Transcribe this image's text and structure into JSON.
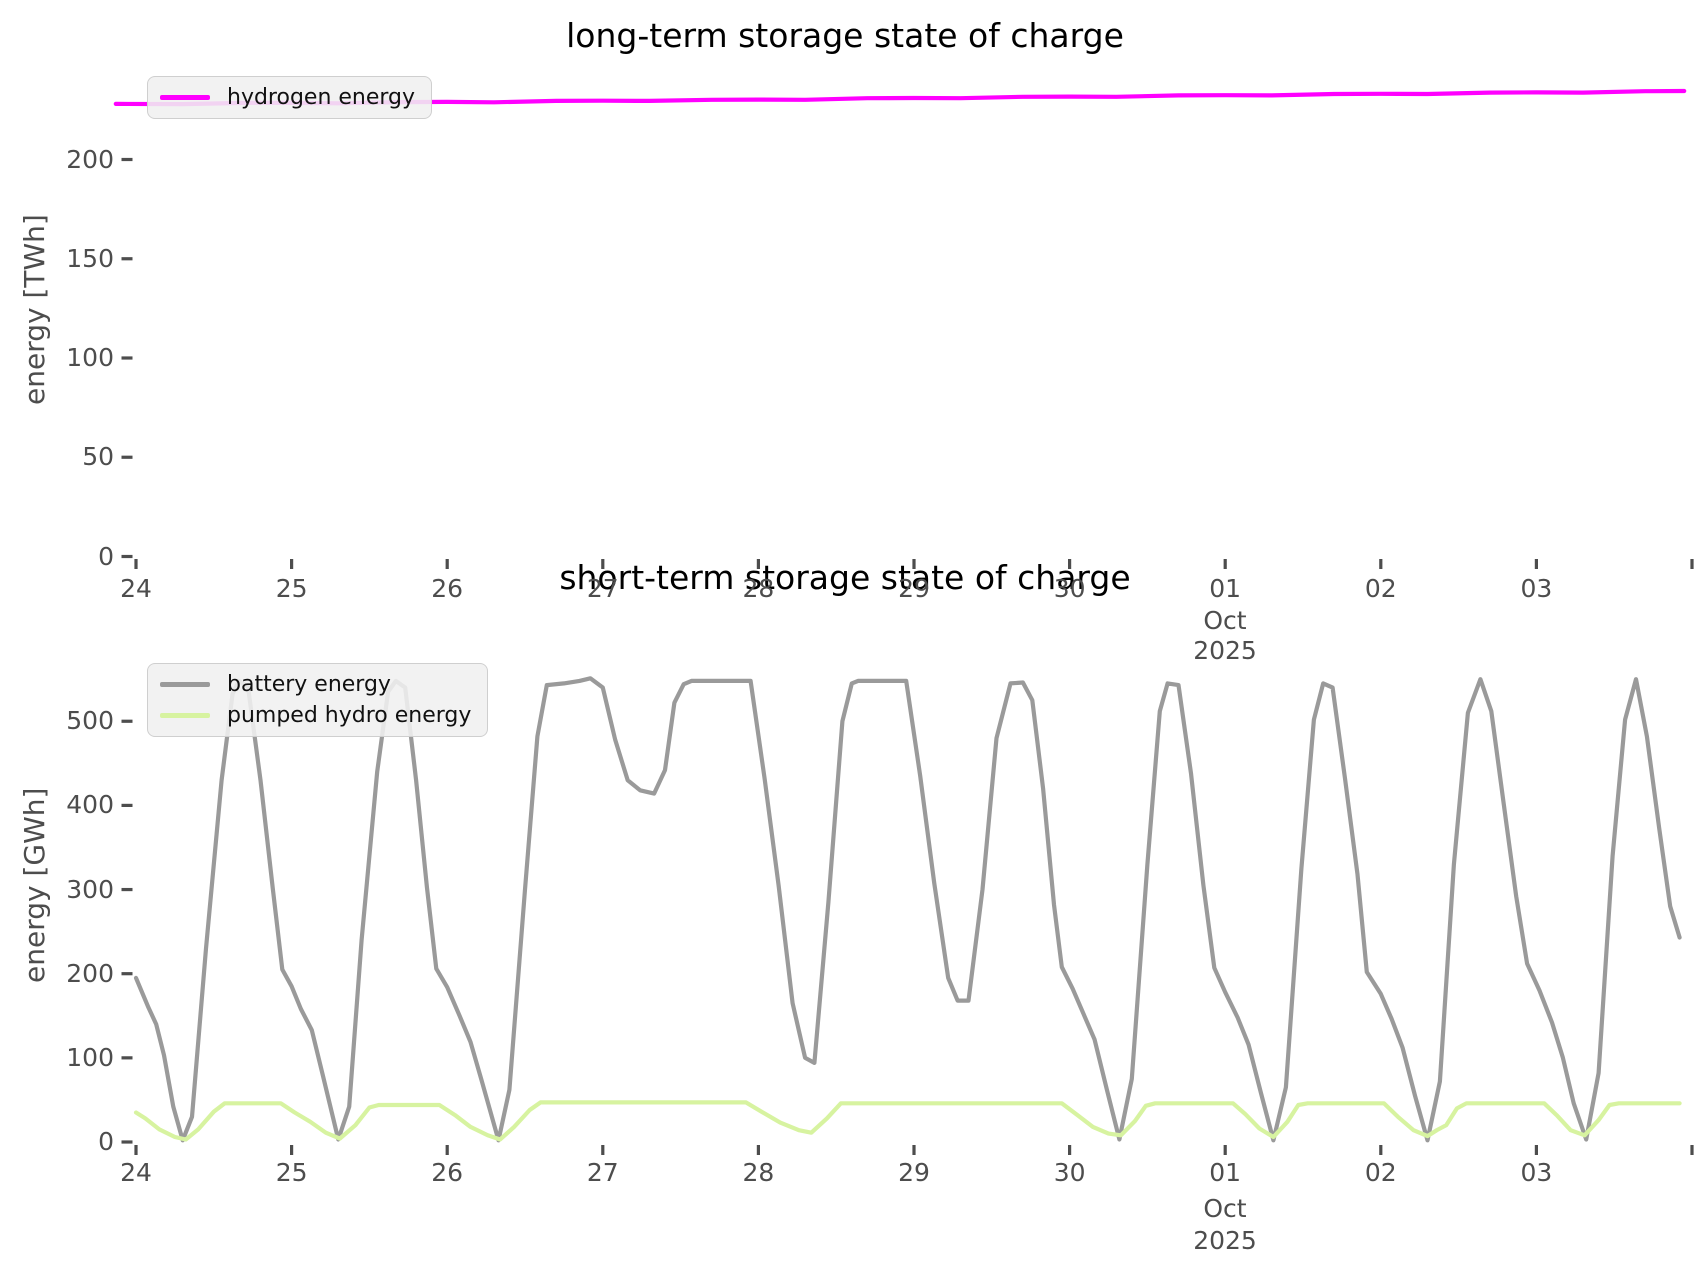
{
  "figure": {
    "background": "#ffffff",
    "tick_color": "#4d4d4d",
    "title_color": "#000000"
  },
  "chart_data": [
    {
      "type": "line",
      "title": "long-term storage state of charge",
      "xlabel": "",
      "ylabel": "energy [TWh]",
      "ytick_values": [
        0,
        50,
        100,
        150,
        200
      ],
      "ylim": [
        0,
        246
      ],
      "grid": false,
      "legend_position": "upper left",
      "x_axis": {
        "tick_labels": [
          "24",
          "25",
          "26",
          "27",
          "28",
          "29",
          "30",
          "01",
          "02",
          "03"
        ],
        "month_label": "Oct",
        "year_label": "2025",
        "unit": "days since 2025-09-24 00:00",
        "xlim": [
          -0.2,
          10.05
        ]
      },
      "series": [
        {
          "name": "hydrogen energy",
          "color": "#ff00ff",
          "unit": "TWh",
          "points": [
            [
              -0.13,
              228.0
            ],
            [
              0.3,
              227.9
            ],
            [
              0.7,
              228.5
            ],
            [
              1.0,
              228.5
            ],
            [
              1.3,
              228.3
            ],
            [
              1.7,
              228.9
            ],
            [
              2.0,
              229.0
            ],
            [
              2.3,
              228.8
            ],
            [
              2.7,
              229.5
            ],
            [
              3.0,
              229.6
            ],
            [
              3.3,
              229.5
            ],
            [
              3.7,
              230.1
            ],
            [
              4.0,
              230.2
            ],
            [
              4.3,
              230.1
            ],
            [
              4.7,
              230.9
            ],
            [
              5.0,
              231.0
            ],
            [
              5.3,
              230.9
            ],
            [
              5.7,
              231.6
            ],
            [
              6.0,
              231.7
            ],
            [
              6.3,
              231.6
            ],
            [
              6.7,
              232.3
            ],
            [
              7.0,
              232.4
            ],
            [
              7.3,
              232.3
            ],
            [
              7.7,
              233.0
            ],
            [
              8.0,
              233.1
            ],
            [
              8.3,
              233.0
            ],
            [
              8.7,
              233.7
            ],
            [
              9.0,
              233.8
            ],
            [
              9.3,
              233.7
            ],
            [
              9.7,
              234.4
            ],
            [
              9.95,
              234.5
            ]
          ]
        }
      ]
    },
    {
      "type": "line",
      "title": "short-term storage state of charge",
      "xlabel": "",
      "ylabel": "energy [GWh]",
      "ytick_values": [
        0,
        100,
        200,
        300,
        400,
        500
      ],
      "ylim": [
        0,
        577
      ],
      "grid": false,
      "legend_position": "upper left",
      "x_axis": {
        "tick_labels": [
          "24",
          "25",
          "26",
          "27",
          "28",
          "29",
          "30",
          "01",
          "02",
          "03"
        ],
        "month_label": "Oct",
        "year_label": "2025",
        "unit": "days since 2025-09-24 00:00",
        "xlim": [
          -0.2,
          10.05
        ]
      },
      "series": [
        {
          "name": "battery energy",
          "color": "#9a9a9a",
          "unit": "GWh",
          "points": [
            [
              0.0,
              195
            ],
            [
              0.08,
              160
            ],
            [
              0.13,
              140
            ],
            [
              0.18,
              103
            ],
            [
              0.24,
              42
            ],
            [
              0.3,
              2
            ],
            [
              0.36,
              30
            ],
            [
              0.45,
              230
            ],
            [
              0.55,
              430
            ],
            [
              0.62,
              532
            ],
            [
              0.66,
              548
            ],
            [
              0.72,
              541
            ],
            [
              0.8,
              430
            ],
            [
              0.88,
              300
            ],
            [
              0.94,
              205
            ],
            [
              1.0,
              185
            ],
            [
              1.06,
              158
            ],
            [
              1.13,
              133
            ],
            [
              1.2,
              80
            ],
            [
              1.3,
              3
            ],
            [
              1.37,
              42
            ],
            [
              1.45,
              240
            ],
            [
              1.55,
              440
            ],
            [
              1.62,
              535
            ],
            [
              1.67,
              548
            ],
            [
              1.73,
              540
            ],
            [
              1.8,
              430
            ],
            [
              1.87,
              302
            ],
            [
              1.93,
              206
            ],
            [
              2.0,
              184
            ],
            [
              2.08,
              150
            ],
            [
              2.15,
              119
            ],
            [
              2.22,
              74
            ],
            [
              2.33,
              2
            ],
            [
              2.4,
              62
            ],
            [
              2.5,
              300
            ],
            [
              2.58,
              482
            ],
            [
              2.64,
              543
            ],
            [
              2.75,
              545
            ],
            [
              2.85,
              548
            ],
            [
              2.92,
              551
            ],
            [
              3.0,
              540
            ],
            [
              3.08,
              478
            ],
            [
              3.16,
              430
            ],
            [
              3.24,
              418
            ],
            [
              3.33,
              414
            ],
            [
              3.4,
              442
            ],
            [
              3.46,
              522
            ],
            [
              3.52,
              544
            ],
            [
              3.57,
              548
            ],
            [
              3.95,
              548
            ],
            [
              4.04,
              432
            ],
            [
              4.13,
              305
            ],
            [
              4.22,
              165
            ],
            [
              4.3,
              100
            ],
            [
              4.36,
              94
            ],
            [
              4.45,
              285
            ],
            [
              4.54,
              500
            ],
            [
              4.6,
              545
            ],
            [
              4.64,
              548
            ],
            [
              4.95,
              548
            ],
            [
              5.04,
              435
            ],
            [
              5.13,
              308
            ],
            [
              5.22,
              195
            ],
            [
              5.28,
              168
            ],
            [
              5.35,
              168
            ],
            [
              5.44,
              300
            ],
            [
              5.53,
              480
            ],
            [
              5.62,
              545
            ],
            [
              5.7,
              546
            ],
            [
              5.76,
              525
            ],
            [
              5.83,
              420
            ],
            [
              5.9,
              282
            ],
            [
              5.95,
              208
            ],
            [
              6.02,
              182
            ],
            [
              6.09,
              152
            ],
            [
              6.16,
              122
            ],
            [
              6.24,
              62
            ],
            [
              6.32,
              3
            ],
            [
              6.4,
              75
            ],
            [
              6.5,
              330
            ],
            [
              6.58,
              512
            ],
            [
              6.63,
              545
            ],
            [
              6.7,
              543
            ],
            [
              6.78,
              438
            ],
            [
              6.86,
              305
            ],
            [
              6.93,
              207
            ],
            [
              7.0,
              178
            ],
            [
              7.08,
              148
            ],
            [
              7.15,
              116
            ],
            [
              7.23,
              58
            ],
            [
              7.31,
              2
            ],
            [
              7.39,
              65
            ],
            [
              7.49,
              325
            ],
            [
              7.57,
              502
            ],
            [
              7.63,
              545
            ],
            [
              7.69,
              540
            ],
            [
              7.77,
              432
            ],
            [
              7.85,
              318
            ],
            [
              7.91,
              202
            ],
            [
              8.0,
              176
            ],
            [
              8.07,
              146
            ],
            [
              8.14,
              112
            ],
            [
              8.22,
              55
            ],
            [
              8.3,
              2
            ],
            [
              8.38,
              72
            ],
            [
              8.47,
              330
            ],
            [
              8.56,
              510
            ],
            [
              8.64,
              550
            ],
            [
              8.71,
              512
            ],
            [
              8.79,
              402
            ],
            [
              8.87,
              292
            ],
            [
              8.94,
              212
            ],
            [
              9.02,
              180
            ],
            [
              9.1,
              142
            ],
            [
              9.17,
              100
            ],
            [
              9.24,
              46
            ],
            [
              9.32,
              3
            ],
            [
              9.4,
              82
            ],
            [
              9.49,
              340
            ],
            [
              9.57,
              502
            ],
            [
              9.64,
              550
            ],
            [
              9.71,
              482
            ],
            [
              9.79,
              372
            ],
            [
              9.86,
              280
            ],
            [
              9.92,
              243
            ]
          ]
        },
        {
          "name": "pumped hydro energy",
          "color": "#d7f3a0",
          "unit": "GWh",
          "points": [
            [
              0.0,
              35
            ],
            [
              0.06,
              28
            ],
            [
              0.15,
              15
            ],
            [
              0.25,
              6
            ],
            [
              0.32,
              3
            ],
            [
              0.4,
              15
            ],
            [
              0.5,
              36
            ],
            [
              0.57,
              46
            ],
            [
              0.93,
              46
            ],
            [
              1.02,
              35
            ],
            [
              1.12,
              24
            ],
            [
              1.22,
              11
            ],
            [
              1.31,
              4
            ],
            [
              1.41,
              20
            ],
            [
              1.5,
              41
            ],
            [
              1.56,
              44
            ],
            [
              1.95,
              44
            ],
            [
              2.05,
              32
            ],
            [
              2.15,
              18
            ],
            [
              2.26,
              8
            ],
            [
              2.34,
              3
            ],
            [
              2.43,
              18
            ],
            [
              2.53,
              38
            ],
            [
              2.6,
              47
            ],
            [
              3.92,
              47
            ],
            [
              4.02,
              36
            ],
            [
              4.14,
              23
            ],
            [
              4.26,
              14
            ],
            [
              4.34,
              11
            ],
            [
              4.44,
              28
            ],
            [
              4.53,
              46
            ],
            [
              5.95,
              46
            ],
            [
              6.05,
              32
            ],
            [
              6.15,
              18
            ],
            [
              6.25,
              10
            ],
            [
              6.33,
              8
            ],
            [
              6.42,
              25
            ],
            [
              6.49,
              43
            ],
            [
              6.55,
              46
            ],
            [
              7.05,
              46
            ],
            [
              7.13,
              33
            ],
            [
              7.22,
              16
            ],
            [
              7.31,
              6
            ],
            [
              7.4,
              24
            ],
            [
              7.47,
              44
            ],
            [
              7.53,
              46
            ],
            [
              8.02,
              46
            ],
            [
              8.11,
              30
            ],
            [
              8.21,
              14
            ],
            [
              8.3,
              7
            ],
            [
              8.36,
              14
            ],
            [
              8.42,
              20
            ],
            [
              8.49,
              40
            ],
            [
              8.55,
              46
            ],
            [
              9.05,
              46
            ],
            [
              9.13,
              32
            ],
            [
              9.22,
              14
            ],
            [
              9.31,
              8
            ],
            [
              9.4,
              26
            ],
            [
              9.47,
              44
            ],
            [
              9.53,
              46
            ],
            [
              9.92,
              46
            ]
          ]
        }
      ]
    }
  ]
}
